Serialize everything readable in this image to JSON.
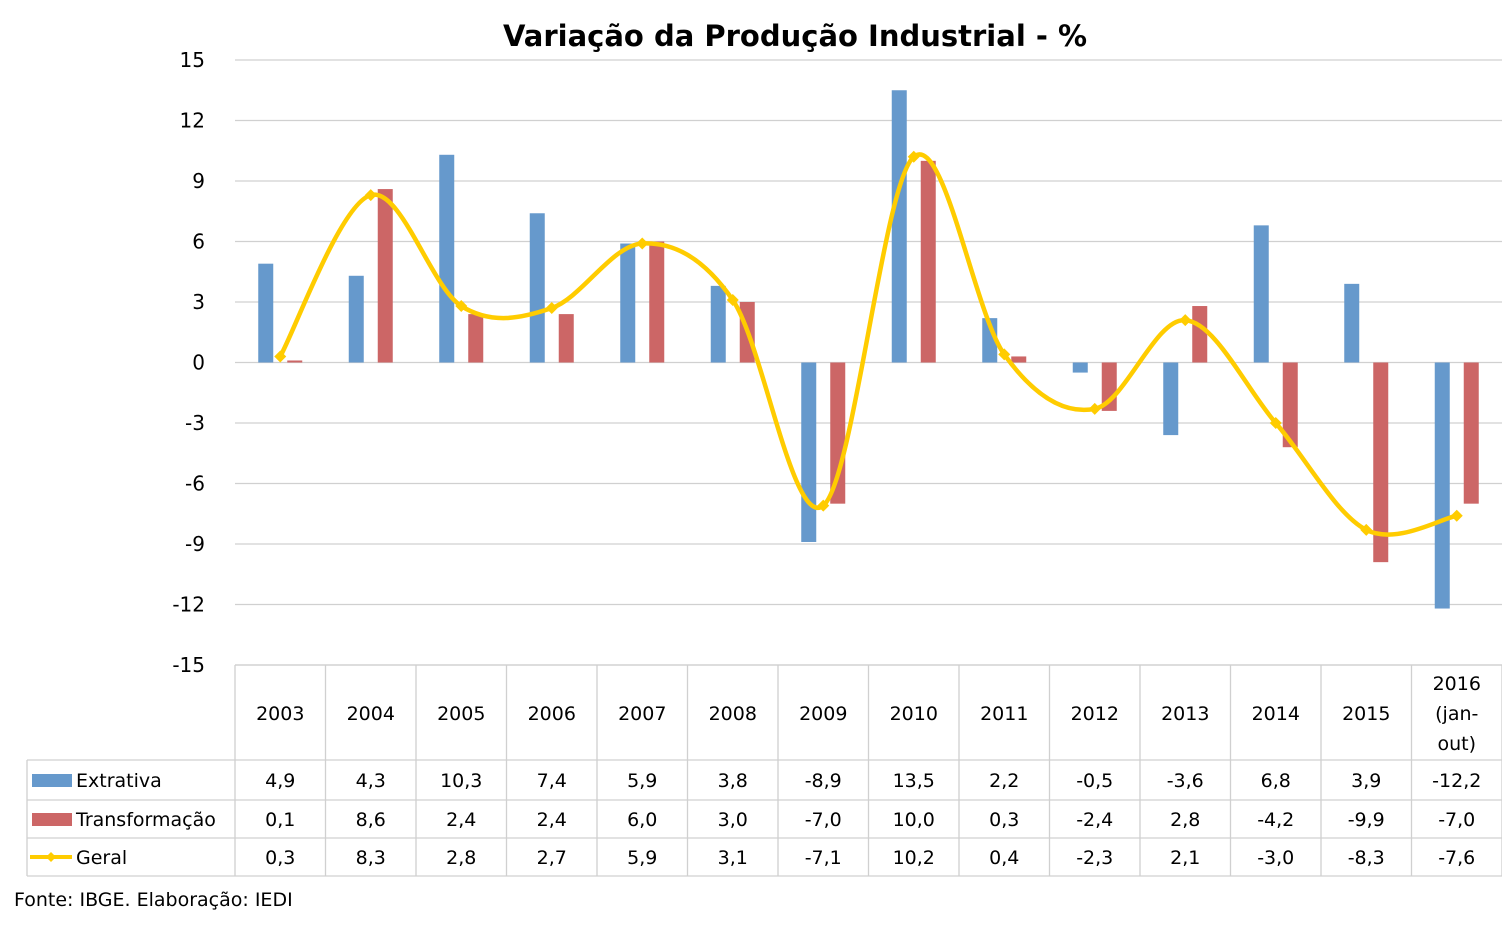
{
  "chart_data": {
    "type": "bar",
    "title": "Variação da Produção Industrial - %",
    "xlabel": "",
    "ylabel": "",
    "ylim": [
      -15,
      15
    ],
    "yticks": [
      15,
      12,
      9,
      6,
      3,
      0,
      -3,
      -6,
      -9,
      -12,
      -15
    ],
    "grid": true,
    "legend_position": "bottom-left (data table)",
    "categories": [
      "2003",
      "2004",
      "2005",
      "2006",
      "2007",
      "2008",
      "2009",
      "2010",
      "2011",
      "2012",
      "2013",
      "2014",
      "2015",
      "2016 (jan-out)"
    ],
    "category_lines": [
      [
        "2003"
      ],
      [
        "2004"
      ],
      [
        "2005"
      ],
      [
        "2006"
      ],
      [
        "2007"
      ],
      [
        "2008"
      ],
      [
        "2009"
      ],
      [
        "2010"
      ],
      [
        "2011"
      ],
      [
        "2012"
      ],
      [
        "2013"
      ],
      [
        "2014"
      ],
      [
        "2015"
      ],
      [
        "2016",
        "(jan-",
        "out)"
      ]
    ],
    "series": [
      {
        "name": "Extrativa",
        "type": "bar",
        "color": "#6699CC",
        "values": [
          4.9,
          4.3,
          10.3,
          7.4,
          5.9,
          3.8,
          -8.9,
          13.5,
          2.2,
          -0.5,
          -3.6,
          6.8,
          3.9,
          -12.2
        ],
        "labels": [
          "4,9",
          "4,3",
          "10,3",
          "7,4",
          "5,9",
          "3,8",
          "-8,9",
          "13,5",
          "2,2",
          "-0,5",
          "-3,6",
          "6,8",
          "3,9",
          "-12,2"
        ]
      },
      {
        "name": "Transformação",
        "type": "bar",
        "color": "#CC6666",
        "values": [
          0.1,
          8.6,
          2.4,
          2.4,
          6.0,
          3.0,
          -7.0,
          10.0,
          0.3,
          -2.4,
          2.8,
          -4.2,
          -9.9,
          -7.0
        ],
        "labels": [
          "0,1",
          "8,6",
          "2,4",
          "2,4",
          "6,0",
          "3,0",
          "-7,0",
          "10,0",
          "0,3",
          "-2,4",
          "2,8",
          "-4,2",
          "-9,9",
          "-7,0"
        ]
      },
      {
        "name": "Geral",
        "type": "line",
        "smooth": true,
        "color": "#FFCC00",
        "values": [
          0.3,
          8.3,
          2.8,
          2.7,
          5.9,
          3.1,
          -7.1,
          10.2,
          0.4,
          -2.3,
          2.1,
          -3.0,
          -8.3,
          -7.6
        ],
        "labels": [
          "0,3",
          "8,3",
          "2,8",
          "2,7",
          "5,9",
          "3,1",
          "-7,1",
          "10,2",
          "0,4",
          "-2,3",
          "2,1",
          "-3,0",
          "-8,3",
          "-7,6"
        ]
      }
    ],
    "source": "Fonte: IBGE. Elaboração: IEDI"
  }
}
